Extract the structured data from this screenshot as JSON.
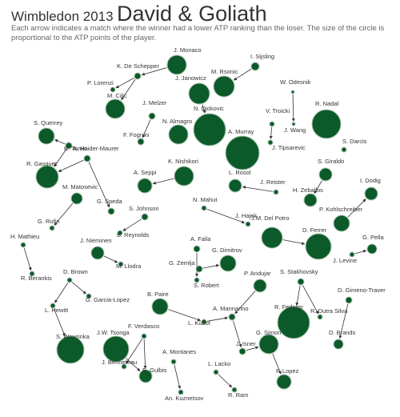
{
  "header": {
    "prefix": "Wimbledon 2013",
    "main": "David & Goliath",
    "subtitle": "Each arrow indicates a match where the winner had a lower ATP ranking than the loser. The size of the circle is proportional to the ATP points of the player."
  },
  "colors": {
    "node_fill": "#0c5a2a",
    "node_stroke": "#a8c4ae",
    "edge": "#333333",
    "text": "#333333"
  },
  "players": [
    {
      "id": "monaco",
      "name": "J. Monaco"
    },
    {
      "id": "sijsling",
      "name": "I. Sijsling"
    },
    {
      "id": "rsonic",
      "name": "M. Rsonic"
    },
    {
      "id": "deschepper",
      "name": "K. De Schepper"
    },
    {
      "id": "lorenzi",
      "name": "P. Lorenzi"
    },
    {
      "id": "janowicz",
      "name": "J. Janowicz"
    },
    {
      "id": "odesnik",
      "name": "W. Odesnik"
    },
    {
      "id": "cilic",
      "name": "M. Cilic"
    },
    {
      "id": "melzer",
      "name": "J. Melzer"
    },
    {
      "id": "djokovic",
      "name": "N. Djokovic"
    },
    {
      "id": "nadal",
      "name": "R. Nadal"
    },
    {
      "id": "troicki",
      "name": "V. Troicki"
    },
    {
      "id": "almagro",
      "name": "N. Almagro"
    },
    {
      "id": "jwang",
      "name": "J. Wang"
    },
    {
      "id": "querrey",
      "name": "S. Querrey"
    },
    {
      "id": "fognini",
      "name": "F. Fognini"
    },
    {
      "id": "murray",
      "name": "A. Murray"
    },
    {
      "id": "tipsarevic",
      "name": "J. Tipsarevic"
    },
    {
      "id": "darcis",
      "name": "S. Darcis"
    },
    {
      "id": "tomic",
      "name": "B. Tomic"
    },
    {
      "id": "gasquet",
      "name": "R. Gasquet"
    },
    {
      "id": "haidermaurer",
      "name": "A. Haider-Maurer"
    },
    {
      "id": "nishikori",
      "name": "K. Nishikori"
    },
    {
      "id": "seppi",
      "name": "A. Seppi"
    },
    {
      "id": "rosol",
      "name": "L. Rosol"
    },
    {
      "id": "reister",
      "name": "J. Reister"
    },
    {
      "id": "giraldo",
      "name": "S. Giraldo"
    },
    {
      "id": "dodig",
      "name": "I. Dodig"
    },
    {
      "id": "matosevic",
      "name": "M. Matosevic"
    },
    {
      "id": "speda",
      "name": "G. Speda"
    },
    {
      "id": "zeballos",
      "name": "H. Zeballos"
    },
    {
      "id": "kohlschreiber",
      "name": "P. Kohlschreiber"
    },
    {
      "id": "johnson",
      "name": "S. Johnson"
    },
    {
      "id": "mahut",
      "name": "N. Mahut"
    },
    {
      "id": "hajek",
      "name": "J. Hajek"
    },
    {
      "id": "delpotro",
      "name": "J.M. Del Potro"
    },
    {
      "id": "rufin",
      "name": "G. Rufin"
    },
    {
      "id": "reynolds",
      "name": "B. Reynolds"
    },
    {
      "id": "ferrer",
      "name": "D. Ferrer"
    },
    {
      "id": "pella",
      "name": "G. Pella"
    },
    {
      "id": "mathieu",
      "name": "H. Mathieu"
    },
    {
      "id": "nieminen",
      "name": "J. Nieminen"
    },
    {
      "id": "falla",
      "name": "A. Falla"
    },
    {
      "id": "llodra",
      "name": "M. Llodra"
    },
    {
      "id": "dimitrov",
      "name": "G. Dimitrov"
    },
    {
      "id": "levine",
      "name": "J. Levine"
    },
    {
      "id": "zemlja",
      "name": "G. Zemlja"
    },
    {
      "id": "berankis",
      "name": "R. Berankis"
    },
    {
      "id": "brown",
      "name": "D. Brown"
    },
    {
      "id": "srobert",
      "name": "S. Robert"
    },
    {
      "id": "andujar",
      "name": "P. Andujar"
    },
    {
      "id": "stakhovsky",
      "name": "S. Stakhovsky"
    },
    {
      "id": "garcialopez",
      "name": "G. Garcia-Lopez"
    },
    {
      "id": "paire",
      "name": "B. Paire"
    },
    {
      "id": "gimenotraver",
      "name": "D. Gimeno-Traver"
    },
    {
      "id": "hewitt",
      "name": "L. Hewitt"
    },
    {
      "id": "mannarino",
      "name": "A. Mannarino"
    },
    {
      "id": "federer",
      "name": "R. Federer"
    },
    {
      "id": "dutrasilva",
      "name": "R. Dutra Silva"
    },
    {
      "id": "kubot",
      "name": "L. Kubot"
    },
    {
      "id": "verdasco",
      "name": "F. Verdasco"
    },
    {
      "id": "wawrinka",
      "name": "S. Wawrinka"
    },
    {
      "id": "tsonga",
      "name": "J.W. Tsonga"
    },
    {
      "id": "simon",
      "name": "G. Simon"
    },
    {
      "id": "brands",
      "name": "D. Brands"
    },
    {
      "id": "isner",
      "name": "J. Isner"
    },
    {
      "id": "benneteau",
      "name": "J. Benneteau"
    },
    {
      "id": "gulbis",
      "name": "E. Gulbis"
    },
    {
      "id": "montanes",
      "name": "A. Montanes"
    },
    {
      "id": "lacko",
      "name": "L. Lacko"
    },
    {
      "id": "flopez",
      "name": "F. Lopez"
    },
    {
      "id": "kuznetsov",
      "name": "An. Kuznetsov"
    },
    {
      "id": "ram",
      "name": "R. Ram"
    }
  ],
  "matches": [
    [
      "deschepper",
      "lorenzi"
    ],
    [
      "monaco",
      "deschepper"
    ],
    [
      "deschepper",
      "cilic"
    ],
    [
      "sijsling",
      "rsonic"
    ],
    [
      "janowicz",
      "djokovic"
    ],
    [
      "odesnik",
      "jwang"
    ],
    [
      "melzer",
      "fognini"
    ],
    [
      "troicki",
      "tipsarevic"
    ],
    [
      "tomic",
      "querrey"
    ],
    [
      "tomic",
      "gasquet"
    ],
    [
      "haidermaurer",
      "gasquet"
    ],
    [
      "haidermaurer",
      "speda"
    ],
    [
      "nishikori",
      "seppi"
    ],
    [
      "reister",
      "rosol"
    ],
    [
      "giraldo",
      "zeballos"
    ],
    [
      "kohlschreiber",
      "dodig"
    ],
    [
      "matosevic",
      "rufin"
    ],
    [
      "johnson",
      "reynolds"
    ],
    [
      "mahut",
      "hajek"
    ],
    [
      "delpotro",
      "ferrer"
    ],
    [
      "levine",
      "pella"
    ],
    [
      "mathieu",
      "berankis"
    ],
    [
      "nieminen",
      "llodra"
    ],
    [
      "falla",
      "srobert"
    ],
    [
      "zemlja",
      "dimitrov"
    ],
    [
      "brown",
      "garcialopez"
    ],
    [
      "brown",
      "hewitt"
    ],
    [
      "hewitt",
      "wawrinka"
    ],
    [
      "stakhovsky",
      "federer"
    ],
    [
      "stakhovsky",
      "dutrasilva"
    ],
    [
      "gimenotraver",
      "brands"
    ],
    [
      "andujar",
      "mannarino"
    ],
    [
      "paire",
      "kubot"
    ],
    [
      "kubot",
      "mannarino"
    ],
    [
      "mannarino",
      "isner"
    ],
    [
      "isner",
      "simon"
    ],
    [
      "simon",
      "flopez"
    ],
    [
      "verdasco",
      "benneteau"
    ],
    [
      "verdasco",
      "gulbis"
    ],
    [
      "tsonga",
      "gulbis"
    ],
    [
      "montanes",
      "kuznetsov"
    ],
    [
      "lacko",
      "ram"
    ]
  ]
}
